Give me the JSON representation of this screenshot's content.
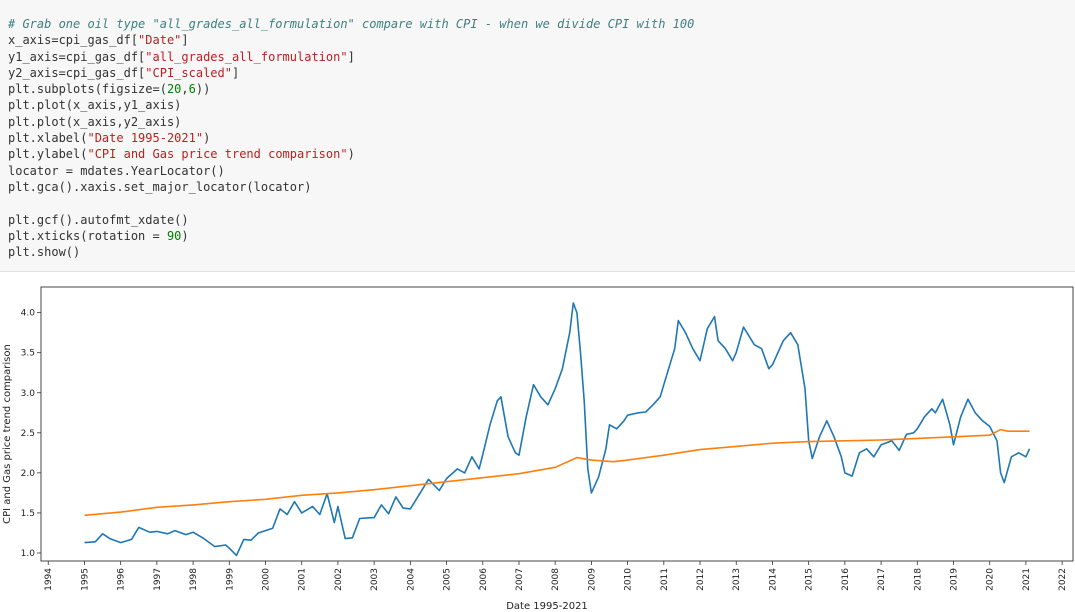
{
  "code_cell": {
    "lines": [
      [
        {
          "t": "cm",
          "v": "# Grab one oil type \"all_grades_all_formulation\" compare with CPI - when we divide CPI with 100"
        }
      ],
      [
        {
          "t": "op",
          "v": "x_axis=cpi_gas_df["
        },
        {
          "t": "st",
          "v": "\"Date\""
        },
        {
          "t": "op",
          "v": "]"
        }
      ],
      [
        {
          "t": "op",
          "v": "y1_axis=cpi_gas_df["
        },
        {
          "t": "st",
          "v": "\"all_grades_all_formulation\""
        },
        {
          "t": "op",
          "v": "]"
        }
      ],
      [
        {
          "t": "op",
          "v": "y2_axis=cpi_gas_df["
        },
        {
          "t": "st",
          "v": "\"CPI_scaled\""
        },
        {
          "t": "op",
          "v": "]"
        }
      ],
      [
        {
          "t": "op",
          "v": "plt.subplots(figsize=("
        },
        {
          "t": "nm",
          "v": "20"
        },
        {
          "t": "op",
          "v": ","
        },
        {
          "t": "nm",
          "v": "6"
        },
        {
          "t": "op",
          "v": "))"
        }
      ],
      [
        {
          "t": "op",
          "v": "plt.plot(x_axis,y1_axis)"
        }
      ],
      [
        {
          "t": "op",
          "v": "plt.plot(x_axis,y2_axis)"
        }
      ],
      [
        {
          "t": "op",
          "v": "plt.xlabel("
        },
        {
          "t": "st",
          "v": "\"Date 1995-2021\""
        },
        {
          "t": "op",
          "v": ")"
        }
      ],
      [
        {
          "t": "op",
          "v": "plt.ylabel("
        },
        {
          "t": "st",
          "v": "\"CPI and Gas price trend comparison\""
        },
        {
          "t": "op",
          "v": ")"
        }
      ],
      [
        {
          "t": "op",
          "v": "locator = mdates.YearLocator()"
        }
      ],
      [
        {
          "t": "op",
          "v": "plt.gca().xaxis.set_major_locator(locator)"
        }
      ],
      [
        {
          "t": "op",
          "v": ""
        }
      ],
      [
        {
          "t": "op",
          "v": "plt.gcf().autofmt_xdate()"
        }
      ],
      [
        {
          "t": "op",
          "v": "plt.xticks(rotation = "
        },
        {
          "t": "nm",
          "v": "90"
        },
        {
          "t": "op",
          "v": ")"
        }
      ],
      [
        {
          "t": "op",
          "v": "plt.show()"
        }
      ]
    ]
  },
  "chart_data": {
    "type": "line",
    "xlabel": "Date 1995-2021",
    "ylabel": "CPI and Gas price trend comparison",
    "xlim": [
      1993.8,
      2022.3
    ],
    "ylim": [
      0.9,
      4.32
    ],
    "x_ticks": [
      "1994",
      "1995",
      "1996",
      "1997",
      "1998",
      "1999",
      "2000",
      "2001",
      "2002",
      "2003",
      "2004",
      "2005",
      "2006",
      "2007",
      "2008",
      "2009",
      "2010",
      "2011",
      "2012",
      "2013",
      "2014",
      "2015",
      "2016",
      "2017",
      "2018",
      "2019",
      "2020",
      "2021",
      "2022"
    ],
    "y_ticks": [
      "1.0",
      "1.5",
      "2.0",
      "2.5",
      "3.0",
      "3.5",
      "4.0"
    ],
    "series": [
      {
        "color": "#1f77b4",
        "points": [
          [
            1995.0,
            1.13
          ],
          [
            1995.3,
            1.14
          ],
          [
            1995.5,
            1.24
          ],
          [
            1995.7,
            1.18
          ],
          [
            1996.0,
            1.13
          ],
          [
            1996.3,
            1.17
          ],
          [
            1996.5,
            1.32
          ],
          [
            1996.8,
            1.26
          ],
          [
            1997.0,
            1.27
          ],
          [
            1997.3,
            1.24
          ],
          [
            1997.5,
            1.28
          ],
          [
            1997.8,
            1.23
          ],
          [
            1998.0,
            1.26
          ],
          [
            1998.3,
            1.18
          ],
          [
            1998.6,
            1.08
          ],
          [
            1998.9,
            1.1
          ],
          [
            1999.0,
            1.06
          ],
          [
            1999.2,
            0.97
          ],
          [
            1999.4,
            1.17
          ],
          [
            1999.6,
            1.16
          ],
          [
            1999.8,
            1.25
          ],
          [
            2000.0,
            1.28
          ],
          [
            2000.2,
            1.31
          ],
          [
            2000.4,
            1.55
          ],
          [
            2000.6,
            1.48
          ],
          [
            2000.8,
            1.64
          ],
          [
            2001.0,
            1.5
          ],
          [
            2001.3,
            1.58
          ],
          [
            2001.5,
            1.48
          ],
          [
            2001.7,
            1.74
          ],
          [
            2001.9,
            1.38
          ],
          [
            2002.0,
            1.58
          ],
          [
            2002.2,
            1.18
          ],
          [
            2002.4,
            1.19
          ],
          [
            2002.6,
            1.43
          ],
          [
            2002.9,
            1.44
          ],
          [
            2003.0,
            1.44
          ],
          [
            2003.2,
            1.6
          ],
          [
            2003.4,
            1.49
          ],
          [
            2003.6,
            1.7
          ],
          [
            2003.8,
            1.56
          ],
          [
            2004.0,
            1.55
          ],
          [
            2004.3,
            1.77
          ],
          [
            2004.5,
            1.92
          ],
          [
            2004.8,
            1.78
          ],
          [
            2005.0,
            1.93
          ],
          [
            2005.3,
            2.05
          ],
          [
            2005.5,
            2.0
          ],
          [
            2005.7,
            2.2
          ],
          [
            2005.9,
            2.05
          ],
          [
            2006.0,
            2.23
          ],
          [
            2006.2,
            2.6
          ],
          [
            2006.4,
            2.9
          ],
          [
            2006.5,
            2.95
          ],
          [
            2006.7,
            2.45
          ],
          [
            2006.9,
            2.25
          ],
          [
            2007.0,
            2.22
          ],
          [
            2007.2,
            2.7
          ],
          [
            2007.4,
            3.1
          ],
          [
            2007.6,
            2.95
          ],
          [
            2007.8,
            2.85
          ],
          [
            2008.0,
            3.05
          ],
          [
            2008.2,
            3.3
          ],
          [
            2008.4,
            3.75
          ],
          [
            2008.5,
            4.12
          ],
          [
            2008.6,
            4.0
          ],
          [
            2008.7,
            3.5
          ],
          [
            2008.8,
            2.9
          ],
          [
            2008.9,
            2.05
          ],
          [
            2009.0,
            1.75
          ],
          [
            2009.2,
            1.95
          ],
          [
            2009.4,
            2.3
          ],
          [
            2009.5,
            2.6
          ],
          [
            2009.7,
            2.55
          ],
          [
            2009.9,
            2.65
          ],
          [
            2010.0,
            2.72
          ],
          [
            2010.3,
            2.75
          ],
          [
            2010.5,
            2.76
          ],
          [
            2010.7,
            2.85
          ],
          [
            2010.9,
            2.95
          ],
          [
            2011.0,
            3.1
          ],
          [
            2011.3,
            3.55
          ],
          [
            2011.4,
            3.9
          ],
          [
            2011.6,
            3.75
          ],
          [
            2011.8,
            3.55
          ],
          [
            2012.0,
            3.4
          ],
          [
            2012.2,
            3.8
          ],
          [
            2012.4,
            3.95
          ],
          [
            2012.5,
            3.65
          ],
          [
            2012.7,
            3.55
          ],
          [
            2012.9,
            3.4
          ],
          [
            2013.0,
            3.5
          ],
          [
            2013.2,
            3.82
          ],
          [
            2013.5,
            3.6
          ],
          [
            2013.7,
            3.55
          ],
          [
            2013.9,
            3.3
          ],
          [
            2014.0,
            3.35
          ],
          [
            2014.3,
            3.65
          ],
          [
            2014.5,
            3.75
          ],
          [
            2014.7,
            3.6
          ],
          [
            2014.9,
            3.05
          ],
          [
            2015.0,
            2.4
          ],
          [
            2015.1,
            2.18
          ],
          [
            2015.3,
            2.45
          ],
          [
            2015.5,
            2.65
          ],
          [
            2015.7,
            2.45
          ],
          [
            2015.9,
            2.2
          ],
          [
            2016.0,
            2.0
          ],
          [
            2016.2,
            1.96
          ],
          [
            2016.4,
            2.25
          ],
          [
            2016.6,
            2.3
          ],
          [
            2016.8,
            2.2
          ],
          [
            2017.0,
            2.35
          ],
          [
            2017.3,
            2.4
          ],
          [
            2017.5,
            2.28
          ],
          [
            2017.7,
            2.48
          ],
          [
            2017.9,
            2.5
          ],
          [
            2018.0,
            2.55
          ],
          [
            2018.2,
            2.7
          ],
          [
            2018.4,
            2.8
          ],
          [
            2018.5,
            2.75
          ],
          [
            2018.7,
            2.92
          ],
          [
            2018.9,
            2.6
          ],
          [
            2019.0,
            2.35
          ],
          [
            2019.2,
            2.7
          ],
          [
            2019.4,
            2.92
          ],
          [
            2019.6,
            2.75
          ],
          [
            2019.8,
            2.65
          ],
          [
            2020.0,
            2.58
          ],
          [
            2020.2,
            2.4
          ],
          [
            2020.3,
            2.0
          ],
          [
            2020.4,
            1.88
          ],
          [
            2020.6,
            2.2
          ],
          [
            2020.8,
            2.25
          ],
          [
            2021.0,
            2.2
          ],
          [
            2021.1,
            2.3
          ]
        ]
      },
      {
        "color": "#ff7f0e",
        "points": [
          [
            1995.0,
            1.47
          ],
          [
            1996.0,
            1.51
          ],
          [
            1997.0,
            1.57
          ],
          [
            1998.0,
            1.6
          ],
          [
            1999.0,
            1.64
          ],
          [
            2000.0,
            1.67
          ],
          [
            2001.0,
            1.72
          ],
          [
            2002.0,
            1.75
          ],
          [
            2003.0,
            1.79
          ],
          [
            2004.0,
            1.84
          ],
          [
            2005.0,
            1.89
          ],
          [
            2006.0,
            1.94
          ],
          [
            2007.0,
            1.99
          ],
          [
            2008.0,
            2.07
          ],
          [
            2008.6,
            2.19
          ],
          [
            2009.0,
            2.16
          ],
          [
            2009.6,
            2.14
          ],
          [
            2010.0,
            2.16
          ],
          [
            2011.0,
            2.22
          ],
          [
            2012.0,
            2.29
          ],
          [
            2013.0,
            2.33
          ],
          [
            2014.0,
            2.37
          ],
          [
            2015.0,
            2.39
          ],
          [
            2016.0,
            2.4
          ],
          [
            2017.0,
            2.41
          ],
          [
            2018.0,
            2.43
          ],
          [
            2019.0,
            2.45
          ],
          [
            2020.0,
            2.47
          ],
          [
            2020.3,
            2.54
          ],
          [
            2020.5,
            2.52
          ],
          [
            2021.1,
            2.52
          ]
        ]
      }
    ]
  }
}
